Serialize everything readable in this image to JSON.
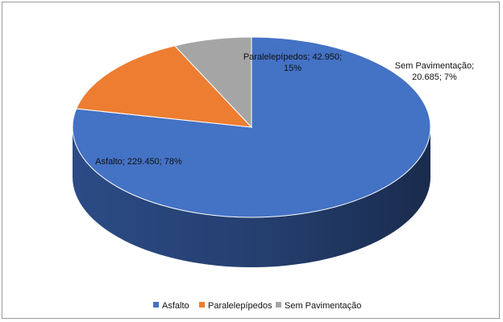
{
  "chart_data": {
    "type": "pie",
    "style": "3d",
    "slices": [
      {
        "name": "Asfalto",
        "value": 229450,
        "percent": 78,
        "color": "#4472C4",
        "side_color": "#2E4F8C",
        "label_lines": [
          "Asfalto; 229.450; 78%"
        ]
      },
      {
        "name": "Paralelepípedos",
        "value": 42950,
        "percent": 15,
        "color": "#ED7D31",
        "side_color": "#B35D22",
        "label_lines": [
          "Paralelepípedos; 42.950;",
          "15%"
        ]
      },
      {
        "name": "Sem Pavimentação",
        "value": 20685,
        "percent": 7,
        "color": "#A5A5A5",
        "side_color": "#7A7A7A",
        "label_lines": [
          "Sem Pavimentação;",
          "20.685; 7%"
        ]
      }
    ],
    "legend": {
      "position": "bottom",
      "entries": [
        "Asfalto",
        "Paralelepípedos",
        "Sem Pavimentação"
      ]
    }
  }
}
